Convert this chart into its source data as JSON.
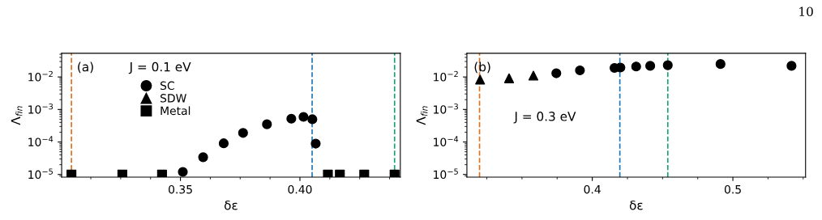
{
  "chart_data": [
    {
      "type": "scatter",
      "xlabel": "δε",
      "ylabel": "Λ$_{fin}$",
      "annotations": [
        "(a)",
        "J = 0.1 eV"
      ],
      "log": "y",
      "grid": false,
      "legend": "top left",
      "xlim": [
        0.3003,
        0.442
      ],
      "xticks": [
        {
          "value": 0.3125,
          "label": null
        },
        {
          "value": 0.325,
          "label": null
        },
        {
          "value": 0.3375,
          "label": null
        },
        {
          "value": 0.35,
          "label": "0.35"
        },
        {
          "value": 0.3625,
          "label": null
        },
        {
          "value": 0.375,
          "label": null
        },
        {
          "value": 0.3875,
          "label": null
        },
        {
          "value": 0.4,
          "label": "0.40"
        },
        {
          "value": 0.4125,
          "label": null
        },
        {
          "value": 0.425,
          "label": null
        },
        {
          "value": 0.4375,
          "label": null
        }
      ],
      "ylim": [
        8.3e-06,
        0.0537
      ],
      "yticks": [
        {
          "value": 1e-05,
          "label": "10$^{−5}$"
        },
        {
          "value": 0.0001,
          "label": "10$^{−4}$"
        },
        {
          "value": 0.001,
          "label": "10$^{−3}$"
        },
        {
          "value": 0.01,
          "label": "10$^{−2}$"
        },
        {
          "value": 9e-06,
          "label": null
        },
        {
          "value": 2e-05,
          "label": null
        },
        {
          "value": 3e-05,
          "label": null
        },
        {
          "value": 4e-05,
          "label": null
        },
        {
          "value": 5e-05,
          "label": null
        },
        {
          "value": 6e-05,
          "label": null
        },
        {
          "value": 7e-05,
          "label": null
        },
        {
          "value": 8e-05,
          "label": null
        },
        {
          "value": 9e-05,
          "label": null
        },
        {
          "value": 0.0002,
          "label": null
        },
        {
          "value": 0.0003,
          "label": null
        },
        {
          "value": 0.0004,
          "label": null
        },
        {
          "value": 0.0005,
          "label": null
        },
        {
          "value": 0.0006,
          "label": null
        },
        {
          "value": 0.0007,
          "label": null
        },
        {
          "value": 0.0008,
          "label": null
        },
        {
          "value": 0.0009,
          "label": null
        },
        {
          "value": 0.002,
          "label": null
        },
        {
          "value": 0.003,
          "label": null
        },
        {
          "value": 0.004,
          "label": null
        },
        {
          "value": 0.005,
          "label": null
        },
        {
          "value": 0.006,
          "label": null
        },
        {
          "value": 0.007,
          "label": null
        },
        {
          "value": 0.008,
          "label": null
        },
        {
          "value": 0.009,
          "label": null
        },
        {
          "value": 0.02,
          "label": null
        },
        {
          "value": 0.03,
          "label": null
        },
        {
          "value": 0.04,
          "label": null
        },
        {
          "value": 0.05,
          "label": null
        }
      ],
      "series": [
        {
          "name": "SC",
          "color": "#000000",
          "marker": "circle",
          "x": [
            0.351,
            0.3595,
            0.3681,
            0.3762,
            0.3862,
            0.3964,
            0.4015,
            0.4052,
            0.4066
          ],
          "values": [
            1.2e-05,
            3.4e-05,
            9.1e-05,
            0.00019,
            0.00035,
            0.00052,
            0.00059,
            0.0005,
            8.9e-05
          ]
        },
        {
          "name": "SDW",
          "color": "#000000",
          "marker": "triangle"
        },
        {
          "name": "Metal",
          "color": "#000000",
          "marker": "square",
          "x": [
            0.3044,
            0.3257,
            0.3423,
            0.4117,
            0.4167,
            0.4269,
            0.4396
          ],
          "values": [
            1e-05,
            1e-05,
            1e-05,
            1e-05,
            1e-05,
            1e-05,
            1e-05
          ]
        }
      ],
      "ref_lines": [
        {
          "axis": "x",
          "value": 0.3044,
          "color": "#e0701e",
          "line_style": "dashed"
        },
        {
          "axis": "x",
          "value": 0.4051,
          "color": "#1f77b4",
          "line_style": "dashed"
        },
        {
          "axis": "x",
          "value": 0.4396,
          "color": "#1b9e77",
          "line_style": "dashed"
        }
      ]
    },
    {
      "type": "scatter",
      "xlabel": "δε",
      "ylabel": "Λ$_{fin}$",
      "annotations": [
        "(b)",
        "J = 0.3 eV",
        "10"
      ],
      "log": "y",
      "grid": false,
      "xlim": [
        0.3108,
        0.5517
      ],
      "xticks": [
        {
          "value": 0.325,
          "label": null
        },
        {
          "value": 0.35,
          "label": null
        },
        {
          "value": 0.375,
          "label": null
        },
        {
          "value": 0.4,
          "label": "0.4"
        },
        {
          "value": 0.425,
          "label": null
        },
        {
          "value": 0.45,
          "label": null
        },
        {
          "value": 0.475,
          "label": null
        },
        {
          "value": 0.5,
          "label": "0.5"
        },
        {
          "value": 0.525,
          "label": null
        },
        {
          "value": 0.55,
          "label": null
        }
      ],
      "ylim": [
        8.3e-06,
        0.0537
      ],
      "yticks": [
        {
          "value": 1e-05,
          "label": "10$^{−5}$"
        },
        {
          "value": 0.0001,
          "label": "10$^{−4}$"
        },
        {
          "value": 0.001,
          "label": "10$^{−3}$"
        },
        {
          "value": 0.01,
          "label": "10$^{−2}$"
        },
        {
          "value": 9e-06,
          "label": null
        },
        {
          "value": 2e-05,
          "label": null
        },
        {
          "value": 3e-05,
          "label": null
        },
        {
          "value": 4e-05,
          "label": null
        },
        {
          "value": 5e-05,
          "label": null
        },
        {
          "value": 6e-05,
          "label": null
        },
        {
          "value": 7e-05,
          "label": null
        },
        {
          "value": 8e-05,
          "label": null
        },
        {
          "value": 9e-05,
          "label": null
        },
        {
          "value": 0.0002,
          "label": null
        },
        {
          "value": 0.0003,
          "label": null
        },
        {
          "value": 0.0004,
          "label": null
        },
        {
          "value": 0.0005,
          "label": null
        },
        {
          "value": 0.0006,
          "label": null
        },
        {
          "value": 0.0007,
          "label": null
        },
        {
          "value": 0.0008,
          "label": null
        },
        {
          "value": 0.0009,
          "label": null
        },
        {
          "value": 0.002,
          "label": null
        },
        {
          "value": 0.003,
          "label": null
        },
        {
          "value": 0.004,
          "label": null
        },
        {
          "value": 0.005,
          "label": null
        },
        {
          "value": 0.006,
          "label": null
        },
        {
          "value": 0.007,
          "label": null
        },
        {
          "value": 0.008,
          "label": null
        },
        {
          "value": 0.009,
          "label": null
        },
        {
          "value": 0.02,
          "label": null
        },
        {
          "value": 0.03,
          "label": null
        },
        {
          "value": 0.04,
          "label": null
        },
        {
          "value": 0.05,
          "label": null
        }
      ],
      "series": [
        {
          "color": "#000000",
          "marker": "circle",
          "x": [
            0.3744,
            0.3912,
            0.4158,
            0.42,
            0.4312,
            0.4412,
            0.4537,
            0.4912,
            0.5417
          ],
          "values": [
            0.013,
            0.016,
            0.019,
            0.0195,
            0.021,
            0.022,
            0.023,
            0.025,
            0.022
          ]
        },
        {
          "color": "#000000",
          "marker": "triangle",
          "x": [
            0.3202,
            0.3408,
            0.3581
          ],
          "values": [
            0.0083,
            0.0091,
            0.011
          ]
        }
      ],
      "ref_lines": [
        {
          "axis": "x",
          "value": 0.3198,
          "color": "#e0701e",
          "line_style": "dashed"
        },
        {
          "axis": "x",
          "value": 0.4196,
          "color": "#1f77b4",
          "line_style": "dashed"
        },
        {
          "axis": "x",
          "value": 0.4537,
          "color": "#1b9e77",
          "line_style": "dashed"
        }
      ]
    }
  ]
}
